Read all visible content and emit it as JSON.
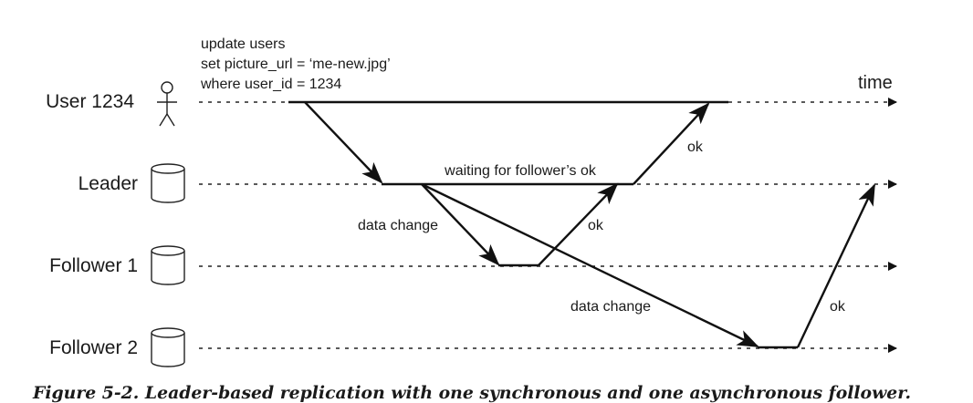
{
  "lanes": {
    "user": "User 1234",
    "leader": "Leader",
    "follower1": "Follower 1",
    "follower2": "Follower 2"
  },
  "query": {
    "line1": "update users",
    "line2": "set picture_url = ‘me-new.jpg’",
    "line3": "where user_id = 1234"
  },
  "time_label": "time",
  "annotations": {
    "waiting": "waiting for follower’s ok",
    "data_change_1": "data change",
    "data_change_2": "data change",
    "ok_user": "ok",
    "ok_follower1": "ok",
    "ok_follower2": "ok"
  },
  "caption": "Figure 5-2. Leader-based replication with one synchronous and one asynchronous follower.",
  "icons": {
    "user": "person-icon",
    "database": "database-icon"
  }
}
